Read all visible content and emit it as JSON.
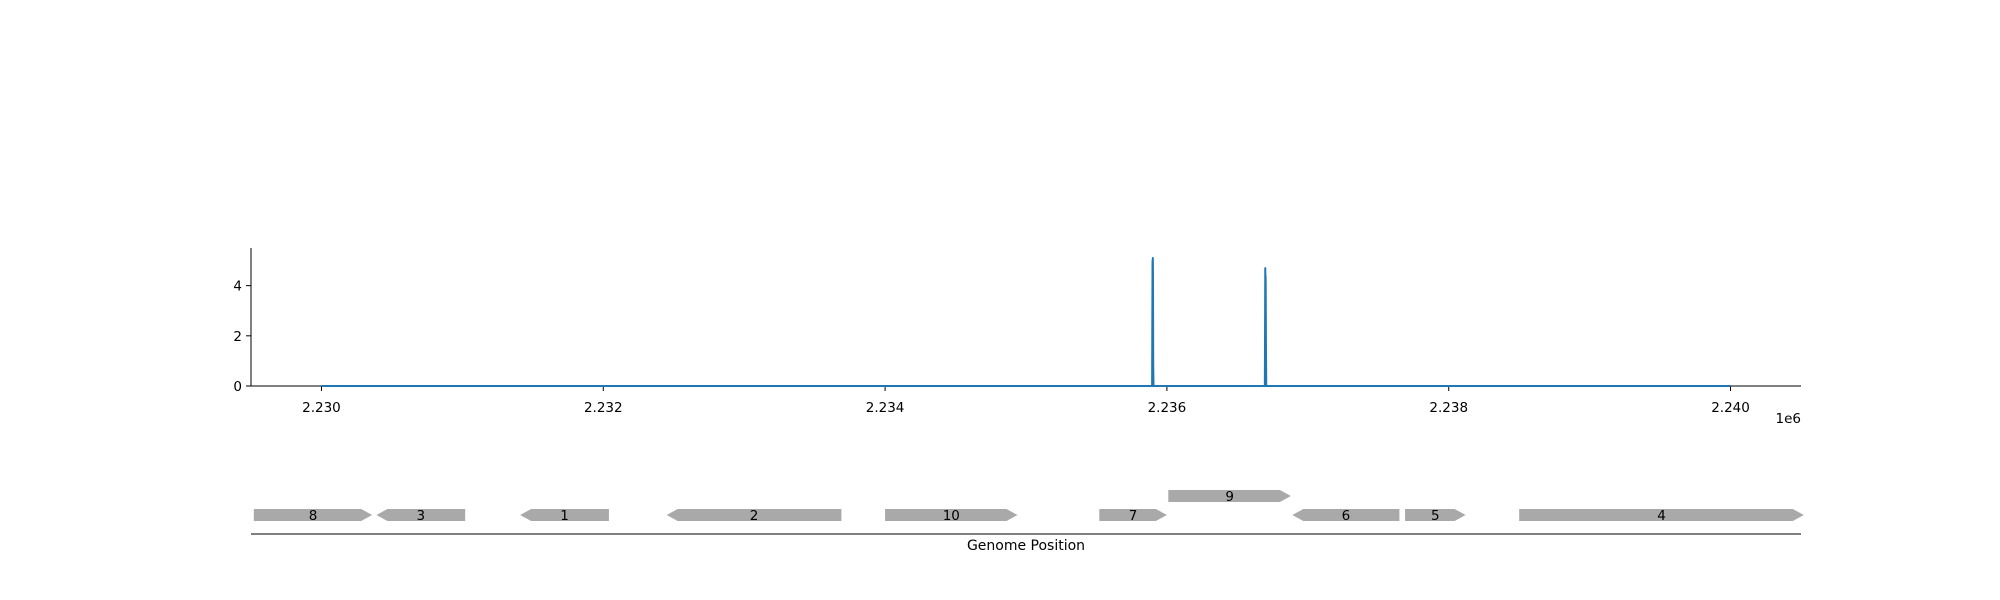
{
  "chart_data": [
    {
      "type": "line",
      "title": "",
      "xlabel": "",
      "ylabel": "",
      "x_offset_label": "1e6",
      "x_ticks": [
        2230000,
        2232000,
        2234000,
        2236000,
        2238000,
        2240000
      ],
      "x_tick_labels": [
        "2.230",
        "2.232",
        "2.234",
        "2.236",
        "2.238",
        "2.240"
      ],
      "y_ticks": [
        0,
        2,
        4
      ],
      "y_tick_labels": [
        "0",
        "2",
        "4"
      ],
      "xlim": [
        2229500,
        2240500
      ],
      "ylim": [
        0,
        5.5
      ],
      "grid": false,
      "line_color": "#1f77b4",
      "series": [
        {
          "x": [
            2230000,
            2235895,
            2235897,
            2235898,
            2235899,
            2235900,
            2235901,
            2235903,
            2235905,
            2236695,
            2236697,
            2236698,
            2236699,
            2236700,
            2236701,
            2236703,
            2236705,
            2240000
          ],
          "y": [
            0,
            0,
            3.5,
            5.0,
            4.4,
            5.1,
            4.6,
            0.8,
            0,
            0,
            3.0,
            4.7,
            4.2,
            4.4,
            4.1,
            1.5,
            0,
            0
          ]
        }
      ]
    },
    {
      "type": "gene-track",
      "xlabel": "Genome Position",
      "feature_color": "#a9a9a9",
      "xlim": [
        2229500,
        2240500
      ],
      "features": [
        {
          "label": "8",
          "start": 2229520,
          "end": 2230360,
          "strand": 1,
          "level": 0
        },
        {
          "label": "3",
          "start": 2230390,
          "end": 2231020,
          "strand": -1,
          "level": 0
        },
        {
          "label": "1",
          "start": 2231410,
          "end": 2232040,
          "strand": -1,
          "level": 0
        },
        {
          "label": "2",
          "start": 2232450,
          "end": 2233690,
          "strand": -1,
          "level": 0
        },
        {
          "label": "10",
          "start": 2234000,
          "end": 2234940,
          "strand": 1,
          "level": 0
        },
        {
          "label": "7",
          "start": 2235520,
          "end": 2236000,
          "strand": 1,
          "level": 0
        },
        {
          "label": "9",
          "start": 2236010,
          "end": 2236880,
          "strand": 1,
          "level": 1
        },
        {
          "label": "6",
          "start": 2236890,
          "end": 2237650,
          "strand": -1,
          "level": 0
        },
        {
          "label": "5",
          "start": 2237690,
          "end": 2238120,
          "strand": 1,
          "level": 0
        },
        {
          "label": "4",
          "start": 2238500,
          "end": 2240520,
          "strand": 1,
          "level": 0
        }
      ]
    }
  ]
}
